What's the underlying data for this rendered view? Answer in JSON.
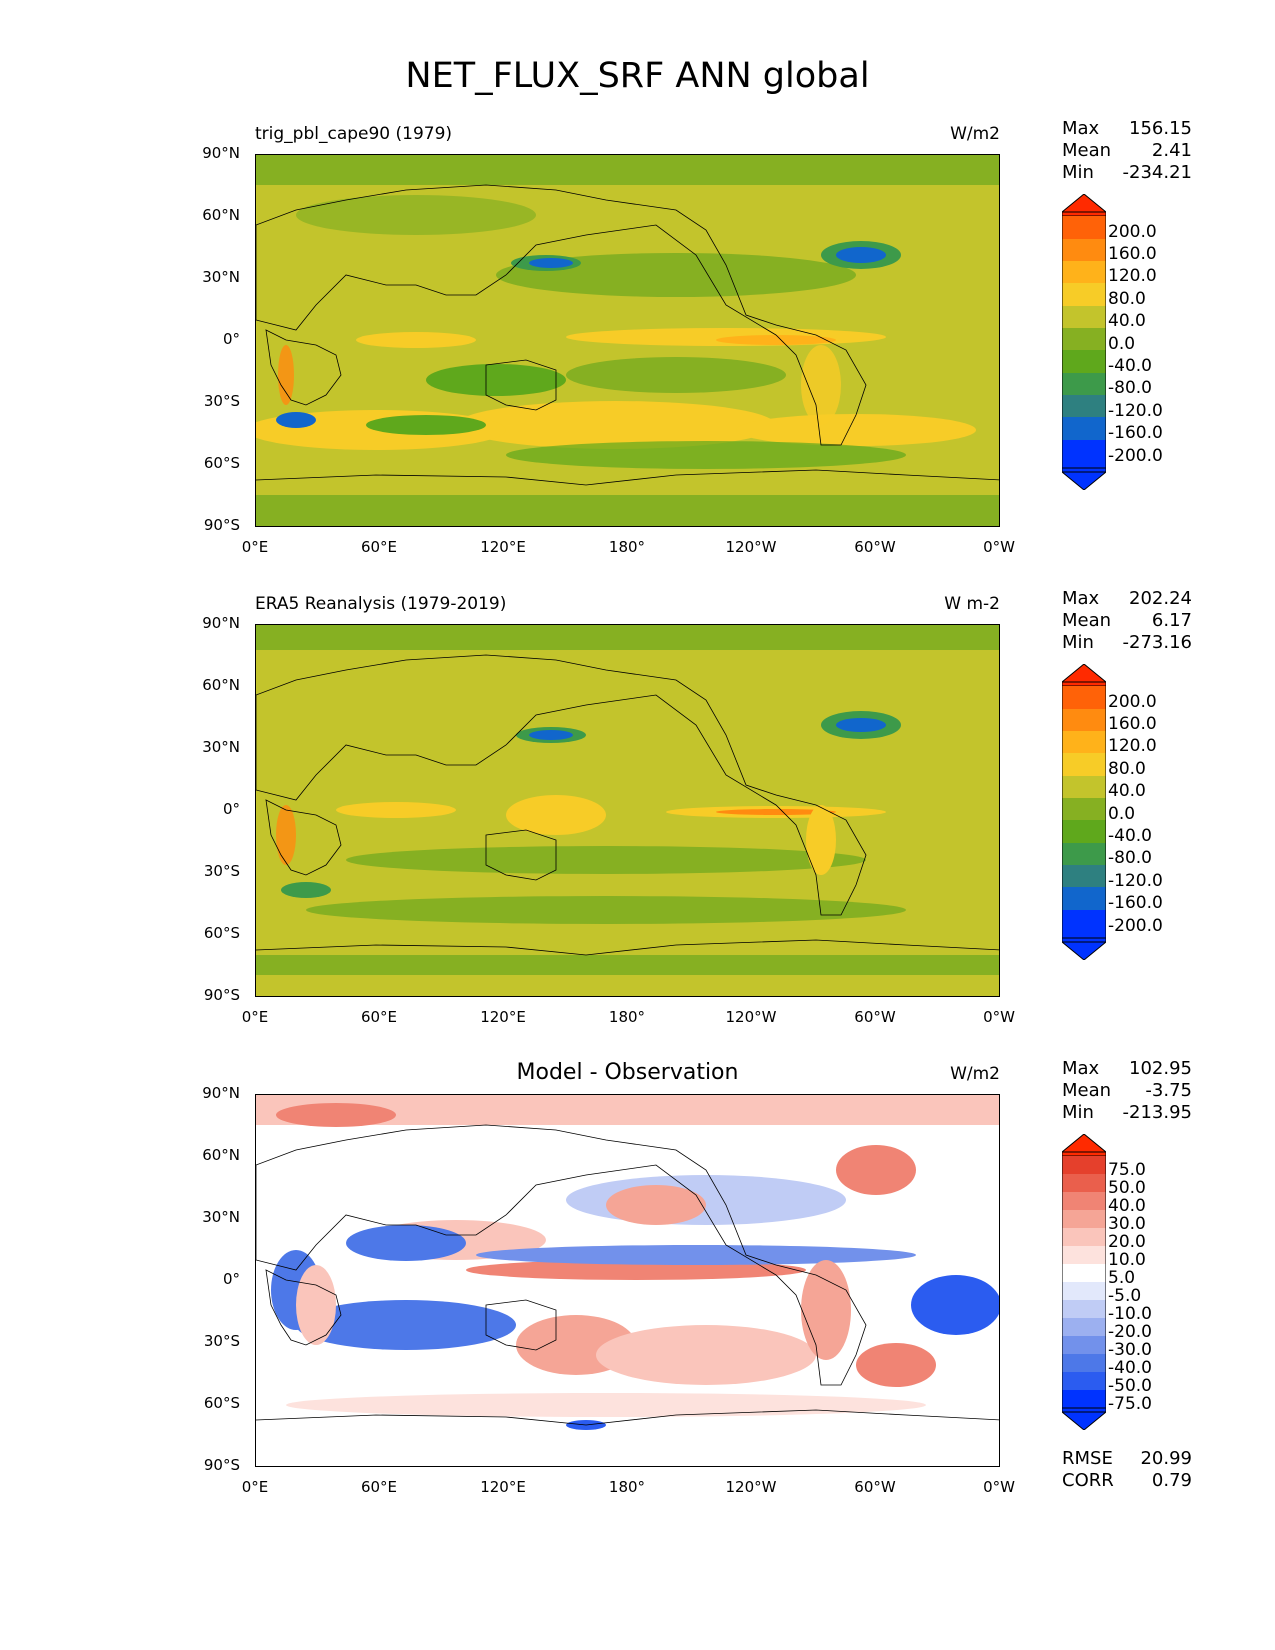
{
  "figure": {
    "title": "NET_FLUX_SRF ANN global"
  },
  "axes": {
    "lat_labels": [
      "90°N",
      "60°N",
      "30°N",
      "0°",
      "30°S",
      "60°S",
      "90°S"
    ],
    "lon_labels": [
      "0°E",
      "60°E",
      "120°E",
      "180°",
      "120°W",
      "60°W",
      "0°W"
    ]
  },
  "colors": {
    "full_field": [
      "#0033ff",
      "#1166cc",
      "#2e8080",
      "#3d9a4a",
      "#5fa81c",
      "#86b022",
      "#c3c42c",
      "#f7cc27",
      "#ffb21a",
      "#ff8b10",
      "#ff6208",
      "#ff2a00"
    ],
    "difference": [
      "#0033ff",
      "#2b5cf0",
      "#4d78e8",
      "#7291eb",
      "#9cb0f0",
      "#c0ccf5",
      "#e2e8fb",
      "#ffffff",
      "#fde2dd",
      "#fac5bb",
      "#f5a596",
      "#f08474",
      "#ea5f4c",
      "#e5402c",
      "#ff2a00"
    ],
    "land_outline": "#000000"
  },
  "panels": [
    {
      "title": "trig_pbl_cape90 (1979)",
      "units": "W/m2",
      "stats": {
        "max_label": "Max",
        "max": "156.15",
        "mean_label": "Mean",
        "mean": "2.41",
        "min_label": "Min",
        "min": "-234.21"
      },
      "colorbar_labels": [
        "200.0",
        "160.0",
        "120.0",
        "80.0",
        "40.0",
        "0.0",
        "-40.0",
        "-80.0",
        "-120.0",
        "-160.0",
        "-200.0"
      ]
    },
    {
      "title": "ERA5 Reanalysis (1979-2019)",
      "units": "W m-2",
      "stats": {
        "max_label": "Max",
        "max": "202.24",
        "mean_label": "Mean",
        "mean": "6.17",
        "min_label": "Min",
        "min": "-273.16"
      },
      "colorbar_labels": [
        "200.0",
        "160.0",
        "120.0",
        "80.0",
        "40.0",
        "0.0",
        "-40.0",
        "-80.0",
        "-120.0",
        "-160.0",
        "-200.0"
      ]
    },
    {
      "title": "Model - Observation",
      "units": "W/m2",
      "stats": {
        "max_label": "Max",
        "max": "102.95",
        "mean_label": "Mean",
        "mean": "-3.75",
        "min_label": "Min",
        "min": "-213.95"
      },
      "colorbar_labels": [
        "75.0",
        "50.0",
        "40.0",
        "30.0",
        "20.0",
        "10.0",
        "5.0",
        "-5.0",
        "-10.0",
        "-20.0",
        "-30.0",
        "-40.0",
        "-50.0",
        "-75.0"
      ],
      "metrics": {
        "rmse_label": "RMSE",
        "rmse": "20.99",
        "corr_label": "CORR",
        "corr": "0.79"
      }
    }
  ]
}
